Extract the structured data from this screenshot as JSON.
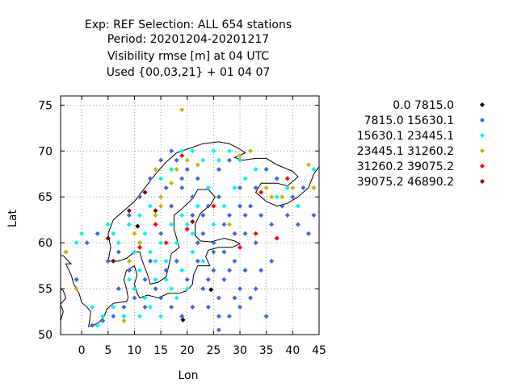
{
  "chart_data": {
    "type": "scatter",
    "title_lines": [
      "Exp: REF   Selection: ALL    654 stations",
      "Period: 20201204-20201217",
      "Visibility rmse [m] at  04 UTC",
      "Used {00,03,21} + 01 04 07"
    ],
    "xlabel": "Lon",
    "ylabel": "Lat",
    "xlim": [
      -4,
      45
    ],
    "ylim": [
      50,
      76
    ],
    "xticks": [
      0,
      5,
      10,
      15,
      20,
      25,
      30,
      35,
      40,
      45
    ],
    "yticks": [
      50,
      55,
      60,
      65,
      70,
      75
    ],
    "grid": true,
    "legend_position": "right",
    "series": [
      {
        "name": "0.0 7815.0",
        "color": "#000000",
        "points": [
          [
            24.5,
            54.9
          ],
          [
            19.2,
            51.6
          ],
          [
            10.6,
            61.8
          ]
        ]
      },
      {
        "name": "7815.0 15630.1",
        "color": "#3d67d6",
        "points": [
          [
            22,
            58
          ],
          [
            24,
            56
          ],
          [
            26,
            54
          ],
          [
            28,
            57
          ],
          [
            30,
            55
          ],
          [
            25,
            60
          ],
          [
            27,
            62
          ],
          [
            23,
            63
          ],
          [
            21,
            65
          ],
          [
            19,
            67
          ],
          [
            17,
            64
          ],
          [
            15,
            61
          ],
          [
            13,
            58
          ],
          [
            12,
            56
          ],
          [
            10,
            54
          ],
          [
            8,
            53
          ],
          [
            6,
            52
          ],
          [
            4,
            51.5
          ],
          [
            2,
            51
          ],
          [
            9,
            57
          ],
          [
            11,
            60
          ],
          [
            14,
            62
          ],
          [
            16,
            66
          ],
          [
            18,
            69
          ],
          [
            20,
            68
          ],
          [
            22,
            67
          ],
          [
            24,
            66
          ],
          [
            26,
            68
          ],
          [
            28,
            69
          ],
          [
            30,
            66
          ],
          [
            32,
            64
          ],
          [
            34,
            63
          ],
          [
            36,
            62
          ],
          [
            38,
            64
          ],
          [
            40,
            65
          ],
          [
            42,
            66
          ],
          [
            44,
            63
          ],
          [
            26,
            52
          ],
          [
            28,
            52
          ],
          [
            30,
            53
          ],
          [
            32,
            54
          ],
          [
            34,
            57
          ],
          [
            36,
            58
          ],
          [
            33,
            60
          ],
          [
            31,
            61
          ],
          [
            29,
            58
          ],
          [
            27,
            56
          ],
          [
            25,
            57
          ],
          [
            23,
            55
          ],
          [
            21,
            53
          ],
          [
            19,
            52
          ],
          [
            17,
            53
          ],
          [
            15,
            54
          ],
          [
            20,
            56
          ],
          [
            22,
            60
          ],
          [
            18,
            58
          ],
          [
            16,
            57
          ],
          [
            14,
            55
          ],
          [
            12,
            53
          ],
          [
            7,
            55
          ],
          [
            -1,
            56
          ],
          [
            1,
            60
          ],
          [
            3,
            61
          ],
          [
            5,
            58
          ],
          [
            7,
            59
          ],
          [
            9,
            63
          ],
          [
            11,
            65
          ],
          [
            13,
            67
          ],
          [
            15,
            69
          ],
          [
            17,
            70
          ],
          [
            19,
            66
          ],
          [
            21,
            63
          ],
          [
            23,
            61
          ],
          [
            25,
            59
          ],
          [
            27,
            59
          ],
          [
            29,
            61
          ],
          [
            31,
            63
          ],
          [
            33,
            66
          ],
          [
            35,
            68
          ],
          [
            37,
            67
          ],
          [
            39,
            63
          ],
          [
            41,
            62
          ],
          [
            43,
            61
          ],
          [
            44,
            66
          ],
          [
            24,
            53
          ],
          [
            26,
            50.5
          ],
          [
            29,
            54
          ],
          [
            31,
            57
          ],
          [
            33,
            55
          ],
          [
            35,
            52
          ],
          [
            28,
            63
          ],
          [
            30,
            64
          ],
          [
            26,
            65
          ],
          [
            24,
            64
          ]
        ]
      },
      {
        "name": "15630.1 23445.1",
        "color": "#00f5f5",
        "points": [
          [
            10,
            55
          ],
          [
            12,
            54
          ],
          [
            8,
            52
          ],
          [
            6,
            53
          ],
          [
            4,
            52
          ],
          [
            3,
            51
          ],
          [
            14,
            56
          ],
          [
            16,
            58
          ],
          [
            18,
            60
          ],
          [
            20,
            62
          ],
          [
            22,
            64
          ],
          [
            24,
            66
          ],
          [
            26,
            69
          ],
          [
            28,
            70
          ],
          [
            30,
            69
          ],
          [
            13,
            64
          ],
          [
            11,
            63
          ],
          [
            9,
            62
          ],
          [
            7,
            60
          ],
          [
            6,
            61
          ],
          [
            5,
            62
          ],
          [
            15,
            67
          ],
          [
            17,
            68
          ],
          [
            19,
            70
          ],
          [
            21,
            70
          ],
          [
            23,
            69
          ],
          [
            25,
            70
          ],
          [
            -1,
            60
          ],
          [
            0,
            61
          ],
          [
            -3,
            59
          ],
          [
            2,
            53
          ],
          [
            9,
            56
          ],
          [
            11,
            52
          ],
          [
            13,
            53
          ],
          [
            15,
            52
          ],
          [
            17,
            55
          ],
          [
            19,
            57
          ],
          [
            21,
            59
          ],
          [
            23,
            58
          ],
          [
            11,
            57
          ],
          [
            13,
            59
          ],
          [
            15,
            60
          ],
          [
            17,
            62
          ],
          [
            19,
            63
          ],
          [
            21,
            61
          ],
          [
            25,
            62
          ],
          [
            27,
            64
          ],
          [
            29,
            66
          ],
          [
            31,
            67
          ],
          [
            33,
            68
          ],
          [
            37,
            65
          ],
          [
            39,
            66
          ],
          [
            41,
            64
          ],
          [
            44,
            68
          ],
          [
            20,
            55
          ],
          [
            18,
            54
          ],
          [
            16,
            56
          ],
          [
            14,
            58
          ],
          [
            12,
            61
          ],
          [
            10,
            59
          ]
        ]
      },
      {
        "name": "23445.1 31260.2",
        "color": "#c8b400",
        "points": [
          [
            19,
            74.5
          ],
          [
            18,
            68
          ],
          [
            17,
            66.5
          ],
          [
            15,
            65
          ],
          [
            14,
            68
          ],
          [
            20,
            69
          ],
          [
            22,
            68.5
          ],
          [
            30,
            69.5
          ],
          [
            32,
            70
          ],
          [
            36,
            65
          ],
          [
            40,
            66
          ],
          [
            43,
            68.5
          ],
          [
            44,
            66
          ],
          [
            -3,
            59
          ],
          [
            10,
            61
          ],
          [
            11,
            60
          ],
          [
            15,
            64
          ],
          [
            14,
            63
          ],
          [
            9,
            58
          ],
          [
            8,
            51.5
          ],
          [
            28,
            62
          ],
          [
            -1,
            55
          ],
          [
            35,
            66
          ],
          [
            38,
            65
          ]
        ]
      },
      {
        "name": "31260.2 39075.2",
        "color": "#ff0000",
        "points": [
          [
            14,
            62
          ],
          [
            19,
            69.5
          ],
          [
            34,
            65.5
          ],
          [
            39,
            67
          ],
          [
            33,
            61
          ],
          [
            30,
            59.5
          ],
          [
            5,
            60.5
          ],
          [
            11,
            59.5
          ],
          [
            16,
            60
          ],
          [
            20,
            61.5
          ],
          [
            25,
            64
          ],
          [
            37,
            60.5
          ]
        ]
      },
      {
        "name": "39075.2 46890.2",
        "color": "#800000",
        "points": [
          [
            12,
            65.5
          ],
          [
            9,
            63.5
          ],
          [
            5,
            60.5
          ],
          [
            6,
            58
          ],
          [
            14,
            63.5
          ],
          [
            21,
            62.3
          ]
        ]
      }
    ]
  }
}
